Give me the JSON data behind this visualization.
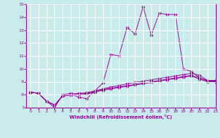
{
  "xlabel": "Windchill (Refroidissement éolien,°C)",
  "ylabel": "",
  "bg_color": "#c8ecec",
  "line_color": "#990099",
  "grid_color": "#ffffff",
  "xlim": [
    -0.5,
    23
  ],
  "ylim": [
    7,
    15
  ],
  "xticks": [
    0,
    1,
    2,
    3,
    4,
    5,
    6,
    7,
    8,
    9,
    10,
    11,
    12,
    13,
    14,
    15,
    16,
    17,
    18,
    19,
    20,
    21,
    22,
    23
  ],
  "yticks": [
    7,
    8,
    9,
    10,
    11,
    12,
    13,
    14,
    15
  ],
  "series": [
    [
      8.2,
      8.1,
      7.5,
      7.0,
      8.0,
      8.1,
      7.8,
      7.7,
      8.3,
      8.9,
      11.1,
      11.0,
      13.2,
      12.7,
      14.8,
      12.6,
      14.3,
      14.2,
      14.2,
      10.0,
      9.8,
      9.3,
      9.1,
      9.1
    ],
    [
      8.2,
      8.1,
      7.5,
      7.2,
      7.9,
      8.05,
      8.1,
      8.15,
      8.3,
      8.45,
      8.6,
      8.7,
      8.85,
      8.95,
      9.05,
      9.15,
      9.25,
      9.35,
      9.45,
      9.55,
      9.65,
      9.5,
      9.1,
      9.1
    ],
    [
      8.2,
      8.1,
      7.5,
      7.2,
      7.9,
      8.0,
      8.05,
      8.1,
      8.25,
      8.4,
      8.5,
      8.6,
      8.7,
      8.8,
      8.9,
      9.0,
      9.1,
      9.2,
      9.3,
      9.4,
      9.5,
      9.3,
      9.05,
      9.05
    ],
    [
      8.2,
      8.1,
      7.5,
      7.2,
      7.9,
      7.95,
      8.0,
      8.05,
      8.2,
      8.35,
      8.45,
      8.55,
      8.65,
      8.75,
      8.85,
      8.95,
      9.05,
      9.15,
      9.25,
      9.35,
      9.45,
      9.2,
      9.0,
      9.0
    ]
  ]
}
